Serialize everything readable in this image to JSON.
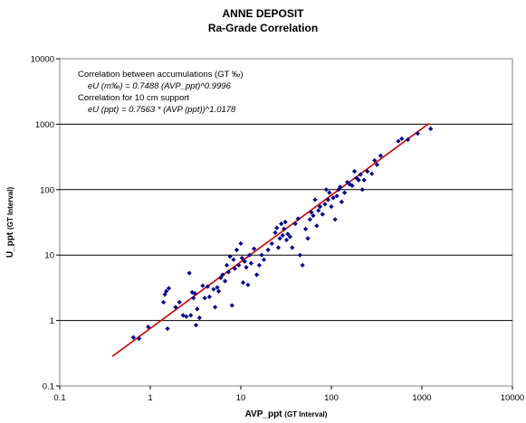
{
  "chart_data": {
    "type": "scatter",
    "title": "ANNE DEPOSIT",
    "subtitle": "Ra-Grade Correlation",
    "xlabel": "AVP_ppt",
    "xlabel_suffix": "(GT Interval)",
    "ylabel": "U_ppt",
    "ylabel_suffix": "(GT Interval)",
    "xscale": "log",
    "yscale": "log",
    "xlim": [
      0.1,
      10000
    ],
    "ylim": [
      0.1,
      10000
    ],
    "x_ticks": [
      "0.1",
      "1",
      "10",
      "100",
      "1000",
      "10000"
    ],
    "y_ticks": [
      "0.1",
      "1",
      "10",
      "100",
      "1000",
      "10000"
    ],
    "grid": "horizontal major gridlines",
    "legend": "none",
    "annotations": [
      "Correlation between accumulations (GT ‰)",
      "eU (m‰) = 0.7488 (AVP_ppt)^0.9996",
      "Correlation for 10 cm support",
      "eU (ppt) = 0.7563 * (AVP (ppt))^1.0178"
    ],
    "marker_color": "#00008b",
    "line_color": "#cc0000",
    "fit_line": {
      "a": 0.7563,
      "b": 1.0178,
      "x_range": [
        0.38,
        1200
      ]
    },
    "points": [
      [
        0.65,
        0.55
      ],
      [
        0.75,
        0.53
      ],
      [
        0.95,
        0.8
      ],
      [
        1.4,
        1.9
      ],
      [
        1.45,
        2.5
      ],
      [
        1.5,
        2.8
      ],
      [
        1.55,
        0.75
      ],
      [
        1.6,
        3.1
      ],
      [
        1.9,
        1.6
      ],
      [
        2.1,
        1.9
      ],
      [
        2.3,
        1.2
      ],
      [
        2.5,
        1.15
      ],
      [
        2.7,
        5.3
      ],
      [
        2.8,
        1.2
      ],
      [
        2.9,
        2.7
      ],
      [
        3.0,
        2.2
      ],
      [
        3.1,
        2.6
      ],
      [
        3.2,
        0.85
      ],
      [
        3.3,
        1.5
      ],
      [
        3.5,
        1.1
      ],
      [
        3.8,
        3.4
      ],
      [
        4.0,
        2.2
      ],
      [
        4.3,
        3.3
      ],
      [
        4.5,
        2.3
      ],
      [
        5.0,
        3.0
      ],
      [
        5.2,
        1.6
      ],
      [
        5.5,
        3.2
      ],
      [
        5.7,
        2.8
      ],
      [
        6.0,
        4.5
      ],
      [
        6.3,
        5.0
      ],
      [
        6.7,
        4.0
      ],
      [
        7.0,
        7.0
      ],
      [
        7.3,
        5.5
      ],
      [
        7.6,
        9.5
      ],
      [
        8.0,
        1.7
      ],
      [
        8.3,
        8.5
      ],
      [
        8.6,
        6.2
      ],
      [
        9.0,
        12.0
      ],
      [
        9.5,
        7.0
      ],
      [
        10.0,
        15.0
      ],
      [
        10.3,
        9.0
      ],
      [
        10.6,
        3.8
      ],
      [
        11.0,
        8.0
      ],
      [
        11.5,
        6.5
      ],
      [
        12.0,
        3.5
      ],
      [
        12.5,
        10.0
      ],
      [
        13.0,
        7.5
      ],
      [
        14.0,
        12.5
      ],
      [
        15.0,
        5.0
      ],
      [
        16.0,
        7.0
      ],
      [
        17.0,
        10.0
      ],
      [
        18.0,
        8.5
      ],
      [
        20.0,
        12.0
      ],
      [
        22.0,
        15.0
      ],
      [
        24.0,
        22.0
      ],
      [
        25.0,
        26.0
      ],
      [
        26.0,
        13.0
      ],
      [
        27.0,
        18.0
      ],
      [
        28.0,
        30.0
      ],
      [
        29.0,
        20.0
      ],
      [
        30.0,
        25.0
      ],
      [
        31.0,
        32.0
      ],
      [
        32.0,
        17.0
      ],
      [
        33.0,
        21.0
      ],
      [
        35.0,
        19.0
      ],
      [
        37.0,
        13.0
      ],
      [
        40.0,
        30.0
      ],
      [
        43.0,
        36.0
      ],
      [
        45.0,
        10.0
      ],
      [
        48.0,
        7.0
      ],
      [
        52.0,
        25.0
      ],
      [
        55.0,
        18.0
      ],
      [
        58.0,
        35.0
      ],
      [
        60.0,
        45.0
      ],
      [
        63.0,
        40.0
      ],
      [
        66.0,
        70.0
      ],
      [
        69.0,
        28.0
      ],
      [
        72.0,
        48.0
      ],
      [
        75.0,
        55.0
      ],
      [
        80.0,
        42.0
      ],
      [
        85.0,
        60.0
      ],
      [
        88.0,
        100.0
      ],
      [
        92.0,
        70.0
      ],
      [
        95.0,
        90.0
      ],
      [
        100.0,
        55.0
      ],
      [
        105.0,
        75.0
      ],
      [
        110.0,
        35.0
      ],
      [
        115.0,
        80.0
      ],
      [
        120.0,
        100.0
      ],
      [
        125.0,
        110.0
      ],
      [
        130.0,
        65.0
      ],
      [
        140.0,
        90.0
      ],
      [
        150.0,
        130.0
      ],
      [
        160.0,
        120.0
      ],
      [
        170.0,
        115.0
      ],
      [
        180.0,
        190.0
      ],
      [
        190.0,
        150.0
      ],
      [
        200.0,
        140.0
      ],
      [
        210.0,
        170.0
      ],
      [
        220.0,
        100.0
      ],
      [
        230.0,
        140.0
      ],
      [
        250.0,
        190.0
      ],
      [
        280.0,
        175.0
      ],
      [
        300.0,
        280.0
      ],
      [
        320.0,
        240.0
      ],
      [
        350.0,
        330.0
      ],
      [
        550.0,
        550.0
      ],
      [
        600.0,
        600.0
      ],
      [
        700.0,
        580.0
      ],
      [
        900.0,
        720.0
      ],
      [
        1250.0,
        850.0
      ]
    ]
  }
}
